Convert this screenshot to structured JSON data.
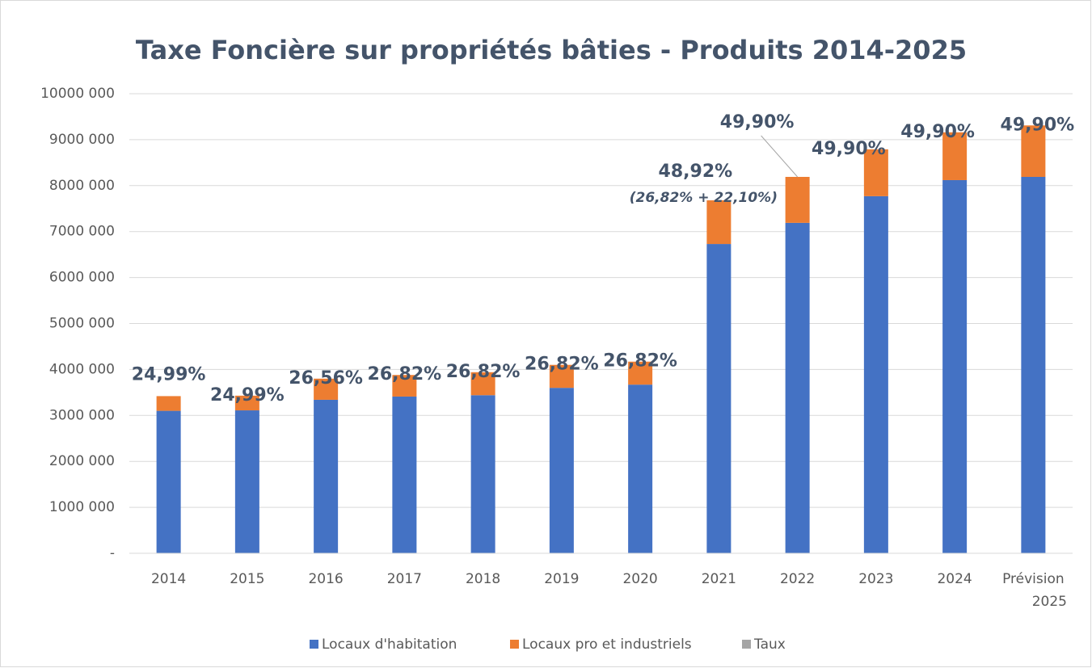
{
  "chart_data": {
    "type": "bar",
    "stacked": true,
    "title": "Taxe Foncière sur propriétés bâties - Produits 2014-2025",
    "categories": [
      "2014",
      "2015",
      "2016",
      "2017",
      "2018",
      "2019",
      "2020",
      "2021",
      "2022",
      "2023",
      "2024",
      "Prévision 2025"
    ],
    "series": [
      {
        "name": "Locaux d'habitation",
        "color": "#4472c4",
        "values": [
          3100000,
          3110000,
          3340000,
          3410000,
          3440000,
          3600000,
          3670000,
          6730000,
          7190000,
          7770000,
          8120000,
          8190000
        ]
      },
      {
        "name": "Locaux pro et industriels",
        "color": "#ed7d31",
        "values": [
          320000,
          320000,
          460000,
          470000,
          500000,
          500000,
          500000,
          950000,
          1000000,
          1020000,
          1040000,
          1120000
        ]
      },
      {
        "name": "Taux",
        "color": "#a5a5a5",
        "values": [
          24.99,
          24.99,
          26.56,
          26.82,
          26.82,
          26.82,
          26.82,
          48.92,
          49.9,
          49.9,
          49.9,
          49.9
        ],
        "value_labels": [
          "24,99%",
          "24,99%",
          "26,56%",
          "26,82%",
          "26,82%",
          "26,82%",
          "26,82%",
          "48,92%",
          "49,90%",
          "49,90%",
          "49,90%",
          "49,90%"
        ]
      }
    ],
    "annotation": "(26,82% + 22,10%)",
    "ylim": [
      0,
      10000000
    ],
    "yticks": [
      {
        "value": 0,
        "label": "-"
      },
      {
        "value": 1000000,
        "label": "1000 000"
      },
      {
        "value": 2000000,
        "label": "2000 000"
      },
      {
        "value": 3000000,
        "label": "3000 000"
      },
      {
        "value": 4000000,
        "label": "4000 000"
      },
      {
        "value": 5000000,
        "label": "5000 000"
      },
      {
        "value": 6000000,
        "label": "6000 000"
      },
      {
        "value": 7000000,
        "label": "7000 000"
      },
      {
        "value": 8000000,
        "label": "8000 000"
      },
      {
        "value": 9000000,
        "label": "9000 000"
      },
      {
        "value": 10000000,
        "label": "10000 000"
      }
    ],
    "grid": true,
    "legend": "bottom"
  }
}
